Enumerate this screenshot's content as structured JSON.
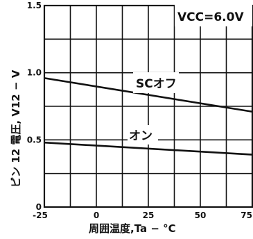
{
  "chart_data": {
    "type": "line",
    "title": "",
    "xlabel": "周囲温度,Ta − °C",
    "ylabel": "ピン 12 電圧, V12 − V",
    "xlim": [
      -25,
      75
    ],
    "ylim": [
      0,
      1.5
    ],
    "x_ticks": [
      "-25",
      "0",
      "25",
      "50",
      "75"
    ],
    "y_ticks": [
      "0",
      "0.5",
      "1.0",
      "1.5"
    ],
    "grid": true,
    "annotation": "VCC=6.0V",
    "series": [
      {
        "name": "SCオフ",
        "x": [
          -25,
          75
        ],
        "y": [
          0.96,
          0.71
        ]
      },
      {
        "name": "オン",
        "x": [
          -25,
          75
        ],
        "y": [
          0.48,
          0.39
        ]
      }
    ]
  }
}
